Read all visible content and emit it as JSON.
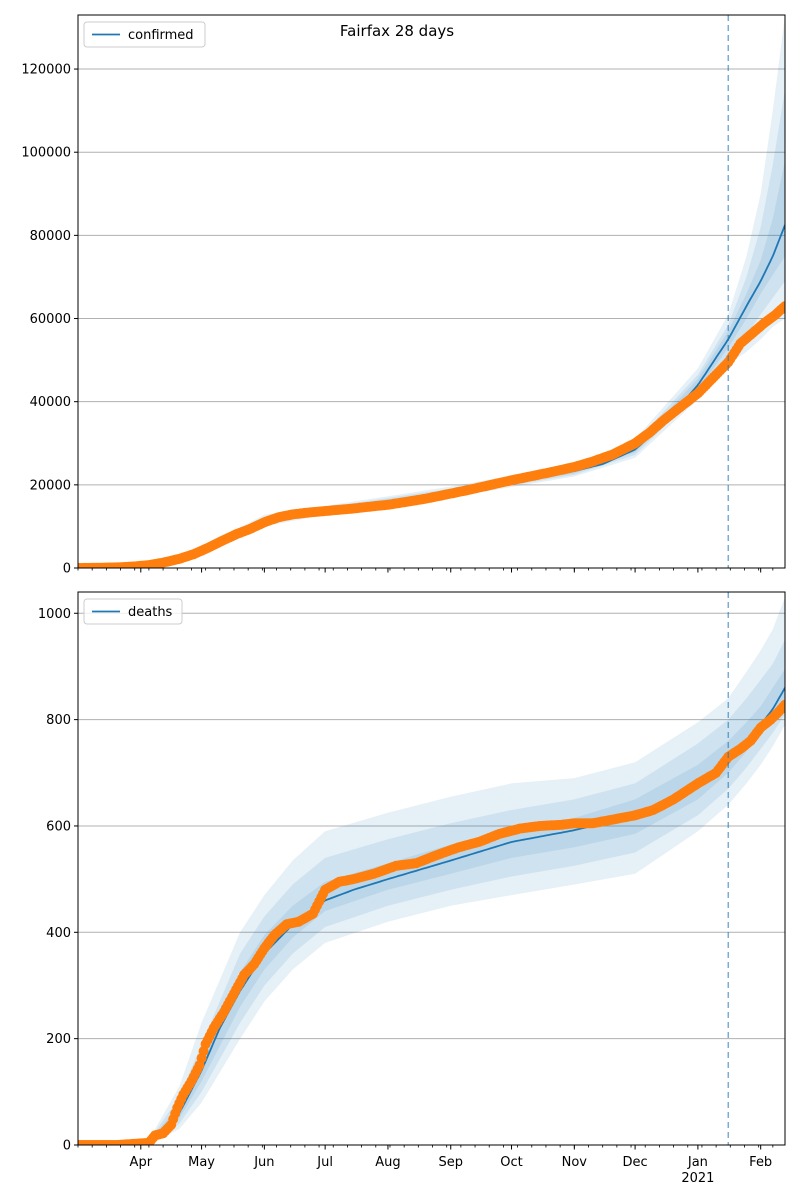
{
  "title": "Fairfax 28 days",
  "colors": {
    "model": "#1f77b4",
    "observed": "#ff7f0e",
    "band": "#1f77b4",
    "vline": "#1f77b4",
    "grid": "#b0b0b0"
  },
  "x_axis": {
    "date_range": [
      "2020-03-01",
      "2021-02-13"
    ],
    "month_ticks": [
      {
        "date": "2020-04-01",
        "label": "Apr"
      },
      {
        "date": "2020-05-01",
        "label": "May"
      },
      {
        "date": "2020-06-01",
        "label": "Jun"
      },
      {
        "date": "2020-07-01",
        "label": "Jul"
      },
      {
        "date": "2020-08-01",
        "label": "Aug"
      },
      {
        "date": "2020-09-01",
        "label": "Sep"
      },
      {
        "date": "2020-10-01",
        "label": "Oct"
      },
      {
        "date": "2020-11-01",
        "label": "Nov"
      },
      {
        "date": "2020-12-01",
        "label": "Dec"
      },
      {
        "date": "2021-01-01",
        "label": "Jan"
      },
      {
        "date": "2021-02-01",
        "label": "Feb"
      }
    ],
    "year_label": "2021",
    "forecast_start": "2021-01-16"
  },
  "chart_data": [
    {
      "type": "line",
      "name": "confirmed",
      "legend": "confirmed",
      "legend_position": "top-left",
      "grid": "horizontal",
      "ylim": [
        0,
        133000
      ],
      "yticks": [
        0,
        20000,
        40000,
        60000,
        80000,
        100000,
        120000
      ],
      "model": {
        "x": [
          "2020-03-01",
          "2020-03-20",
          "2020-04-05",
          "2020-04-20",
          "2020-05-05",
          "2020-05-20",
          "2020-06-01",
          "2020-06-15",
          "2020-07-01",
          "2020-07-15",
          "2020-08-01",
          "2020-08-15",
          "2020-09-01",
          "2020-09-15",
          "2020-10-01",
          "2020-10-15",
          "2020-11-01",
          "2020-11-15",
          "2020-12-01",
          "2020-12-15",
          "2021-01-01",
          "2021-01-16",
          "2021-01-25",
          "2021-02-01",
          "2021-02-07",
          "2021-02-13"
        ],
        "y": [
          0,
          0,
          500,
          1800,
          4800,
          8500,
          11200,
          12800,
          13800,
          14600,
          15700,
          16800,
          18200,
          19500,
          20800,
          22000,
          23300,
          25000,
          28500,
          34500,
          44000,
          55000,
          63000,
          69000,
          75000,
          82500
        ]
      },
      "bands": [
        {
          "x": [
            "2020-03-01",
            "2020-04-05",
            "2020-05-05",
            "2020-06-01",
            "2020-07-01",
            "2020-09-01",
            "2020-11-01",
            "2020-12-01",
            "2021-01-01",
            "2021-01-16",
            "2021-01-25",
            "2021-02-01",
            "2021-02-07",
            "2021-02-13"
          ],
          "lower": [
            0,
            300,
            3800,
            10000,
            12800,
            17000,
            22000,
            26500,
            40500,
            49000,
            52000,
            55000,
            58000,
            60000
          ],
          "upper": [
            0,
            700,
            6000,
            12800,
            14900,
            19600,
            24800,
            31000,
            48000,
            61000,
            75000,
            90000,
            110000,
            133000
          ]
        },
        {
          "x": [
            "2020-03-01",
            "2020-04-05",
            "2020-05-05",
            "2020-06-01",
            "2020-07-01",
            "2020-09-01",
            "2020-11-01",
            "2020-12-01",
            "2021-01-01",
            "2021-01-16",
            "2021-01-25",
            "2021-02-01",
            "2021-02-07",
            "2021-02-13"
          ],
          "lower": [
            0,
            360,
            4100,
            10400,
            13100,
            17400,
            22400,
            27200,
            41800,
            51000,
            56000,
            61000,
            65000,
            69000
          ],
          "upper": [
            0,
            640,
            5600,
            12300,
            14600,
            19100,
            24300,
            30200,
            46500,
            58500,
            70000,
            82000,
            97000,
            115000
          ]
        },
        {
          "x": [
            "2020-03-01",
            "2020-04-05",
            "2020-05-05",
            "2020-06-01",
            "2020-07-01",
            "2020-09-01",
            "2020-11-01",
            "2020-12-01",
            "2021-01-01",
            "2021-01-16",
            "2021-01-25",
            "2021-02-01",
            "2021-02-07",
            "2021-02-13"
          ],
          "lower": [
            0,
            420,
            4400,
            10800,
            13400,
            17800,
            22800,
            27800,
            42800,
            53000,
            60000,
            66000,
            70500,
            75000
          ],
          "upper": [
            0,
            580,
            5200,
            11800,
            14300,
            18700,
            23800,
            29400,
            45500,
            57000,
            66000,
            74000,
            84000,
            98000
          ]
        }
      ],
      "observed": {
        "x": [
          "2020-03-01",
          "2020-03-10",
          "2020-03-20",
          "2020-03-28",
          "2020-04-05",
          "2020-04-12",
          "2020-04-20",
          "2020-04-27",
          "2020-05-04",
          "2020-05-11",
          "2020-05-18",
          "2020-05-25",
          "2020-06-01",
          "2020-06-08",
          "2020-06-15",
          "2020-06-22",
          "2020-07-01",
          "2020-07-08",
          "2020-07-15",
          "2020-07-22",
          "2020-08-01",
          "2020-08-10",
          "2020-08-20",
          "2020-09-01",
          "2020-09-10",
          "2020-09-20",
          "2020-10-01",
          "2020-10-10",
          "2020-10-20",
          "2020-11-01",
          "2020-11-10",
          "2020-11-20",
          "2020-12-01",
          "2020-12-08",
          "2020-12-15",
          "2020-12-22",
          "2021-01-01",
          "2021-01-08",
          "2021-01-16",
          "2021-01-22",
          "2021-01-28",
          "2021-02-03",
          "2021-02-08",
          "2021-02-13"
        ],
        "y": [
          0,
          50,
          150,
          350,
          700,
          1300,
          2200,
          3300,
          4800,
          6500,
          8100,
          9400,
          11000,
          12200,
          12900,
          13300,
          13700,
          14000,
          14300,
          14700,
          15200,
          15900,
          16700,
          17900,
          18800,
          19900,
          21100,
          22000,
          23000,
          24300,
          25600,
          27300,
          30000,
          32500,
          35500,
          38200,
          42000,
          45500,
          49500,
          54000,
          56500,
          59000,
          60800,
          63000
        ]
      }
    },
    {
      "type": "line",
      "name": "deaths",
      "legend": "deaths",
      "legend_position": "top-left",
      "grid": "horizontal",
      "ylim": [
        0,
        1040
      ],
      "yticks": [
        0,
        200,
        400,
        600,
        800,
        1000
      ],
      "model": {
        "x": [
          "2020-03-01",
          "2020-03-20",
          "2020-04-05",
          "2020-04-12",
          "2020-04-20",
          "2020-05-01",
          "2020-05-10",
          "2020-05-20",
          "2020-06-01",
          "2020-06-15",
          "2020-07-01",
          "2020-07-15",
          "2020-08-01",
          "2020-09-01",
          "2020-10-01",
          "2020-11-01",
          "2020-12-01",
          "2021-01-01",
          "2021-01-16",
          "2021-01-25",
          "2021-02-01",
          "2021-02-07",
          "2021-02-13"
        ],
        "y": [
          0,
          0,
          5,
          20,
          60,
          140,
          220,
          290,
          360,
          415,
          460,
          480,
          500,
          535,
          570,
          592,
          620,
          680,
          725,
          760,
          790,
          820,
          860
        ]
      },
      "bands": [
        {
          "x": [
            "2020-03-01",
            "2020-04-05",
            "2020-04-20",
            "2020-05-01",
            "2020-05-20",
            "2020-06-01",
            "2020-06-15",
            "2020-07-01",
            "2020-08-01",
            "2020-09-01",
            "2020-10-01",
            "2020-11-01",
            "2020-12-01",
            "2021-01-01",
            "2021-01-16",
            "2021-01-25",
            "2021-02-01",
            "2021-02-07",
            "2021-02-13"
          ],
          "lower": [
            0,
            0,
            30,
            80,
            200,
            270,
            330,
            380,
            420,
            450,
            470,
            490,
            510,
            590,
            640,
            680,
            715,
            750,
            790
          ],
          "upper": [
            0,
            10,
            110,
            230,
            400,
            470,
            535,
            590,
            625,
            655,
            680,
            690,
            720,
            795,
            840,
            890,
            930,
            970,
            1030
          ]
        },
        {
          "x": [
            "2020-03-01",
            "2020-04-05",
            "2020-04-20",
            "2020-05-01",
            "2020-05-20",
            "2020-06-01",
            "2020-06-15",
            "2020-07-01",
            "2020-08-01",
            "2020-09-01",
            "2020-10-01",
            "2020-11-01",
            "2020-12-01",
            "2021-01-01",
            "2021-01-16",
            "2021-01-25",
            "2021-02-01",
            "2021-02-07",
            "2021-02-13"
          ],
          "lower": [
            0,
            2,
            40,
            100,
            230,
            300,
            360,
            410,
            450,
            480,
            505,
            525,
            550,
            620,
            670,
            710,
            745,
            775,
            810
          ],
          "upper": [
            0,
            8,
            90,
            190,
            360,
            430,
            490,
            540,
            575,
            605,
            630,
            650,
            680,
            755,
            800,
            840,
            875,
            905,
            950
          ]
        },
        {
          "x": [
            "2020-03-01",
            "2020-04-05",
            "2020-04-20",
            "2020-05-01",
            "2020-05-20",
            "2020-06-01",
            "2020-06-15",
            "2020-07-01",
            "2020-08-01",
            "2020-09-01",
            "2020-10-01",
            "2020-11-01",
            "2020-12-01",
            "2021-01-01",
            "2021-01-16",
            "2021-01-25",
            "2021-02-01",
            "2021-02-07",
            "2021-02-13"
          ],
          "lower": [
            0,
            3,
            50,
            120,
            260,
            330,
            390,
            440,
            480,
            510,
            540,
            560,
            585,
            650,
            700,
            740,
            770,
            800,
            835
          ],
          "upper": [
            0,
            7,
            75,
            165,
            325,
            395,
            450,
            495,
            530,
            565,
            595,
            615,
            650,
            715,
            760,
            795,
            825,
            860,
            895
          ]
        }
      ],
      "observed": {
        "x": [
          "2020-03-01",
          "2020-03-10",
          "2020-03-20",
          "2020-03-28",
          "2020-04-05",
          "2020-04-08",
          "2020-04-12",
          "2020-04-16",
          "2020-04-19",
          "2020-04-22",
          "2020-04-26",
          "2020-04-30",
          "2020-05-03",
          "2020-05-07",
          "2020-05-12",
          "2020-05-17",
          "2020-05-22",
          "2020-05-27",
          "2020-06-01",
          "2020-06-06",
          "2020-06-12",
          "2020-06-18",
          "2020-06-25",
          "2020-07-01",
          "2020-07-08",
          "2020-07-15",
          "2020-07-25",
          "2020-08-05",
          "2020-08-15",
          "2020-08-25",
          "2020-09-05",
          "2020-09-15",
          "2020-09-25",
          "2020-10-05",
          "2020-10-15",
          "2020-10-25",
          "2020-11-01",
          "2020-11-10",
          "2020-11-20",
          "2020-12-01",
          "2020-12-10",
          "2020-12-20",
          "2021-01-01",
          "2021-01-10",
          "2021-01-16",
          "2021-01-22",
          "2021-01-27",
          "2021-02-01",
          "2021-02-06",
          "2021-02-10",
          "2021-02-13"
        ],
        "y": [
          0,
          0,
          0,
          2,
          4,
          18,
          22,
          38,
          70,
          95,
          120,
          150,
          190,
          220,
          250,
          285,
          320,
          340,
          370,
          395,
          415,
          420,
          435,
          480,
          495,
          500,
          510,
          525,
          530,
          545,
          560,
          570,
          585,
          595,
          600,
          602,
          605,
          605,
          612,
          620,
          630,
          650,
          680,
          700,
          730,
          745,
          760,
          785,
          800,
          815,
          828
        ]
      }
    }
  ]
}
